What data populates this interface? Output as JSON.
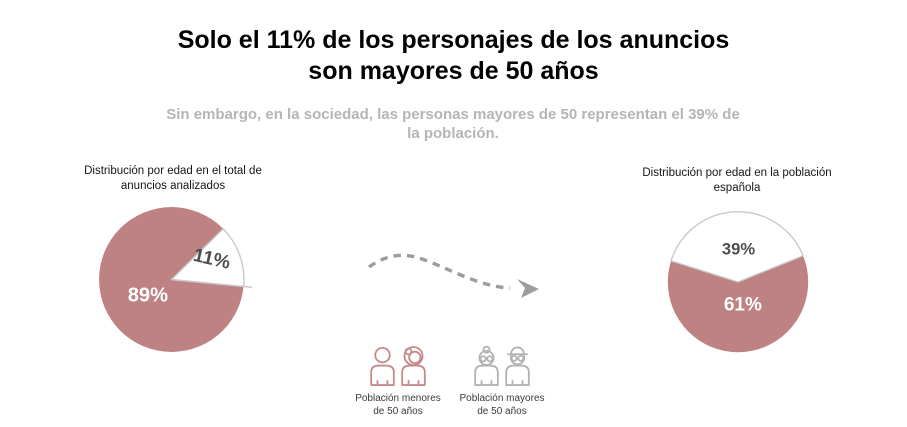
{
  "header": {
    "title": "Solo el 11% de los personajes de los anuncios\nson mayores de 50 años",
    "subtitle": "Sin embargo, en la sociedad, las personas mayores de 50 representan el 39% de\nla población."
  },
  "colors": {
    "rose": "#bf8283",
    "white_slice": "#ffffff",
    "slice_outline": "#c9c9c9",
    "dark_label": "#4d4d4d",
    "subtitle_gray": "#b5b5b5",
    "arrow_gray": "#9c9c9c",
    "icon_rose": "#c58a8c",
    "icon_gray": "#b2b2b2"
  },
  "chart_data": [
    {
      "type": "pie",
      "title": "Distribución por edad en el total de\nanuncios analizados",
      "slices": [
        {
          "name": "Población menores de 50 años",
          "value": 89,
          "label": "89%",
          "color": "#bf8283"
        },
        {
          "name": "Población mayores de 50 años",
          "value": 11,
          "label": "11%",
          "color": "#ffffff"
        }
      ]
    },
    {
      "type": "pie",
      "title": "Distribución por edad en la población\nespañola",
      "slices": [
        {
          "name": "Población menores de 50 años",
          "value": 61,
          "label": "61%",
          "color": "#bf8283"
        },
        {
          "name": "Población mayores de 50 años",
          "value": 39,
          "label": "39%",
          "color": "#ffffff"
        }
      ]
    }
  ],
  "legend": {
    "items": [
      {
        "label": "Población menores\nde 50 años",
        "icons": [
          "young-man-icon",
          "young-woman-icon"
        ]
      },
      {
        "label": "Población mayores\nde 50 años",
        "icons": [
          "old-woman-icon",
          "old-man-icon"
        ]
      }
    ]
  }
}
